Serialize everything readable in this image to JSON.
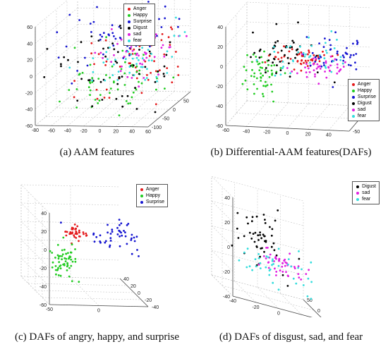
{
  "figure": {
    "captions": {
      "a": "(a) AAM features",
      "b": "(b) Differential-AAM features(DAFs)",
      "c": "(c) DAFs of angry, happy, and surprise",
      "d": "(d) DAFs of disgust, sad, and fear"
    }
  },
  "colors": {
    "Anger": "#e41a1c",
    "Happy": "#22cc22",
    "Surprise": "#1515d0",
    "Digust": "#000000",
    "sad": "#e020e0",
    "fear": "#33dddd"
  },
  "chart_data": [
    {
      "type": "scatter",
      "projection": "3d",
      "title": "",
      "grid": true,
      "legend_position": "top-right",
      "legend": [
        "Anger",
        "Happy",
        "Surprise",
        "Digust",
        "sad",
        "fear"
      ],
      "x_ticks": [
        "-80",
        "-60",
        "-40",
        "-20",
        "0",
        "20",
        "40",
        "60"
      ],
      "y_ticks": [
        "-100",
        "-50",
        "0",
        "50",
        "100"
      ],
      "z_ticks": [
        "-60",
        "-40",
        "-20",
        "0",
        "20",
        "40",
        "60"
      ],
      "xlim": [
        -80,
        60
      ],
      "ylim": [
        -100,
        100
      ],
      "zlim": [
        -60,
        60
      ],
      "series": [
        {
          "name": "Anger",
          "cx": 20,
          "cy": 0,
          "cz": -5,
          "sx": 30,
          "sy": 40,
          "sz": 25,
          "count": 60
        },
        {
          "name": "Happy",
          "cx": -10,
          "cy": 0,
          "cz": -25,
          "sx": 30,
          "sy": 40,
          "sz": 20,
          "count": 60
        },
        {
          "name": "Surprise",
          "cx": 0,
          "cy": 0,
          "cz": 30,
          "sx": 35,
          "sy": 40,
          "sz": 20,
          "count": 60
        },
        {
          "name": "Digust",
          "cx": -5,
          "cy": 0,
          "cz": -10,
          "sx": 35,
          "sy": 40,
          "sz": 25,
          "count": 60
        },
        {
          "name": "sad",
          "cx": 25,
          "cy": 0,
          "cz": 15,
          "sx": 25,
          "sy": 40,
          "sz": 20,
          "count": 50
        },
        {
          "name": "fear",
          "cx": 10,
          "cy": 0,
          "cz": 5,
          "sx": 30,
          "sy": 40,
          "sz": 20,
          "count": 50
        }
      ]
    },
    {
      "type": "scatter",
      "projection": "3d",
      "title": "",
      "grid": true,
      "legend_position": "bottom-right",
      "legend": [
        "Anger",
        "Happy",
        "Surprise",
        "Digust",
        "sad",
        "fear"
      ],
      "x_ticks": [
        "-60",
        "-40",
        "-20",
        "0",
        "20",
        "40"
      ],
      "y_ticks": [
        "-50",
        "0",
        "50"
      ],
      "z_ticks": [
        "-60",
        "-40",
        "-20",
        "0",
        "20",
        "40"
      ],
      "xlim": [
        -60,
        60
      ],
      "ylim": [
        -50,
        50
      ],
      "zlim": [
        -60,
        40
      ],
      "series": [
        {
          "name": "Anger",
          "cx": 0,
          "cy": 0,
          "cz": 0,
          "sx": 12,
          "sy": 10,
          "sz": 5,
          "count": 50
        },
        {
          "name": "Happy",
          "cx": -35,
          "cy": 5,
          "cz": -20,
          "sx": 8,
          "sy": 10,
          "sz": 10,
          "count": 55
        },
        {
          "name": "Surprise",
          "cx": 35,
          "cy": -5,
          "cz": 8,
          "sx": 18,
          "sy": 10,
          "sz": 12,
          "count": 45
        },
        {
          "name": "Digust",
          "cx": -15,
          "cy": 0,
          "cz": 2,
          "sx": 18,
          "sy": 10,
          "sz": 15,
          "count": 45
        },
        {
          "name": "sad",
          "cx": 20,
          "cy": 5,
          "cz": -12,
          "sx": 12,
          "sy": 10,
          "sz": 5,
          "count": 45
        },
        {
          "name": "fear",
          "cx": 10,
          "cy": 5,
          "cz": -5,
          "sx": 25,
          "sy": 10,
          "sz": 12,
          "count": 40
        }
      ]
    },
    {
      "type": "scatter",
      "projection": "3d",
      "title": "",
      "grid": true,
      "legend_position": "top-right",
      "legend": [
        "Anger",
        "Happy",
        "Surprise"
      ],
      "x_ticks": [
        "-50",
        "0"
      ],
      "y_ticks": [
        "-40",
        "-20",
        "0",
        "20",
        "40"
      ],
      "z_ticks": [
        "-60",
        "-40",
        "-20",
        "0",
        "20",
        "40"
      ],
      "xlim": [
        -50,
        50
      ],
      "ylim": [
        -40,
        40
      ],
      "zlim": [
        -60,
        40
      ],
      "series": [
        {
          "name": "Anger",
          "cx": -10,
          "cy": 0,
          "cz": 5,
          "sx": 5,
          "sy": 5,
          "sz": 4,
          "count": 40
        },
        {
          "name": "Happy",
          "cx": -20,
          "cy": 5,
          "cz": -30,
          "sx": 6,
          "sy": 8,
          "sz": 12,
          "count": 60
        },
        {
          "name": "Surprise",
          "cx": 30,
          "cy": -5,
          "cz": 5,
          "sx": 18,
          "sy": 8,
          "sz": 8,
          "count": 45
        }
      ]
    },
    {
      "type": "scatter",
      "projection": "3d",
      "title": "",
      "grid": true,
      "legend_position": "top-right",
      "legend": [
        "Digust",
        "sad",
        "fear"
      ],
      "x_ticks": [
        "-40",
        "-20",
        "0",
        "20",
        "40"
      ],
      "y_ticks": [
        "-50",
        "0",
        "50"
      ],
      "z_ticks": [
        "-40",
        "-20",
        "0",
        "20",
        "40"
      ],
      "xlim": [
        -40,
        40
      ],
      "ylim": [
        -50,
        50
      ],
      "zlim": [
        -40,
        40
      ],
      "series": [
        {
          "name": "Digust",
          "cx": -5,
          "cy": 0,
          "cz": 5,
          "sx": 12,
          "sy": 10,
          "sz": 12,
          "count": 50
        },
        {
          "name": "sad",
          "cx": 10,
          "cy": 0,
          "cz": -10,
          "sx": 10,
          "sy": 10,
          "sz": 5,
          "count": 45
        },
        {
          "name": "fear",
          "cx": 0,
          "cy": 5,
          "cz": -15,
          "sx": 20,
          "sy": 15,
          "sz": 8,
          "count": 40
        }
      ]
    }
  ]
}
